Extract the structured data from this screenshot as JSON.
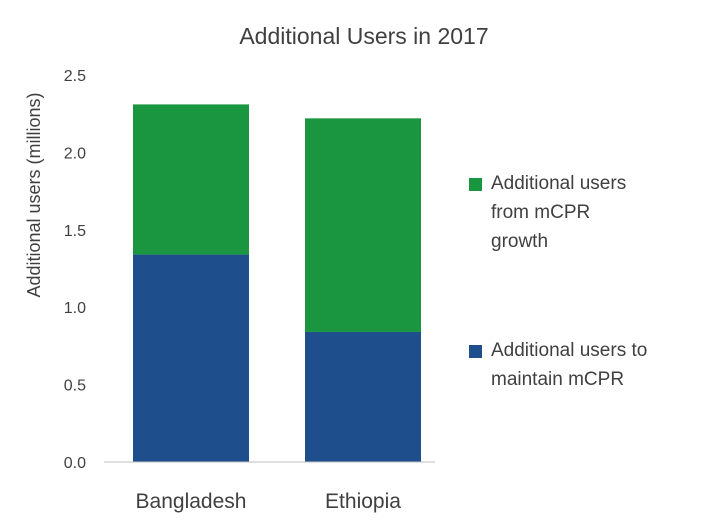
{
  "chart_data": {
    "type": "bar",
    "stacked": true,
    "title": "Additional Users in 2017",
    "xlabel": "",
    "ylabel": "Additional users (millions)",
    "ylim": [
      0,
      2.5
    ],
    "yticks": [
      "0.0",
      "0.5",
      "1.0",
      "1.5",
      "2.0",
      "2.5"
    ],
    "ytick_values": [
      0,
      0.5,
      1.0,
      1.5,
      2.0,
      2.5
    ],
    "grid": false,
    "categories": [
      "Bangladesh",
      "Ethiopia"
    ],
    "series": [
      {
        "name": "Additional users to maintain mCPR",
        "legend_lines": [
          "Additional users to",
          "maintain mCPR"
        ],
        "color": "#1f4e8c",
        "values": [
          1.34,
          0.84
        ]
      },
      {
        "name": "Additional users from mCPR growth",
        "legend_lines": [
          "Additional users",
          "from mCPR",
          "growth"
        ],
        "color": "#1a9641",
        "values": [
          0.97,
          1.38
        ]
      }
    ],
    "legend_position": "right"
  }
}
